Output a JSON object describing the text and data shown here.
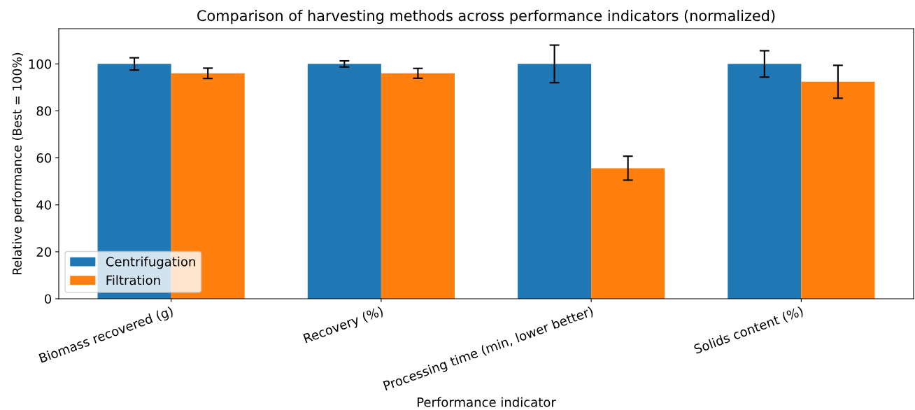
{
  "chart_data": {
    "type": "bar",
    "title": "Comparison of harvesting methods across performance indicators (normalized)",
    "xlabel": "Performance indicator",
    "ylabel": "Relative performance (Best = 100%)",
    "categories": [
      "Biomass recovered (g)",
      "Recovery (%)",
      "Processing time (min, lower better)",
      "Solids content (%)"
    ],
    "series": [
      {
        "name": "Centrifugation",
        "color": "#1f77b4",
        "values": [
          100,
          100,
          100,
          100
        ],
        "errors": [
          2.6,
          1.3,
          8.0,
          5.6
        ]
      },
      {
        "name": "Filtration",
        "color": "#ff7f0e",
        "values": [
          96,
          96,
          55.6,
          92.4
        ],
        "errors": [
          2.2,
          2.1,
          5.1,
          7.0
        ]
      }
    ],
    "ylim": [
      0,
      115
    ],
    "yticks": [
      0,
      20,
      40,
      60,
      80,
      100
    ],
    "grid": false,
    "legend": "bottom left"
  }
}
